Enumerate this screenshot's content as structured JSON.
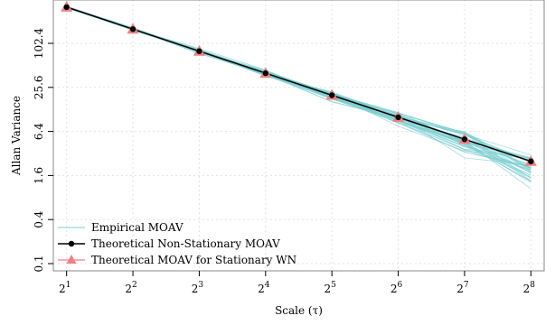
{
  "chart_data": {
    "type": "line",
    "xlabel": "Scale (τ)",
    "ylabel": "Allan Variance",
    "x_scale": "log2",
    "y_scale": "log",
    "x": [
      2,
      4,
      8,
      16,
      32,
      64,
      128,
      256
    ],
    "x_tick_labels": [
      {
        "base": "2",
        "exp": "1"
      },
      {
        "base": "2",
        "exp": "2"
      },
      {
        "base": "2",
        "exp": "3"
      },
      {
        "base": "2",
        "exp": "4"
      },
      {
        "base": "2",
        "exp": "5"
      },
      {
        "base": "2",
        "exp": "6"
      },
      {
        "base": "2",
        "exp": "7"
      },
      {
        "base": "2",
        "exp": "8"
      }
    ],
    "y_ticks": [
      0.1,
      0.4,
      1.6,
      6.4,
      25.6,
      102.4
    ],
    "y_tick_labels": [
      "0.1",
      "0.4",
      "1.6",
      "6.4",
      "25.6",
      "102.4"
    ],
    "grid": true,
    "legend_position": "bottom-left",
    "series": [
      {
        "name": "Empirical MOAV",
        "style": "many-thin-lines",
        "color": "#7ccfd2",
        "line_count": 40
      },
      {
        "name": "Theoretical Non-Stationary MOAV",
        "color": "#000000",
        "marker": "circle",
        "values": [
          320,
          160,
          80,
          40,
          20,
          10,
          5,
          2.5
        ]
      },
      {
        "name": "Theoretical MOAV for Stationary WN",
        "color": "#f08080",
        "marker": "triangle",
        "values": [
          320,
          160,
          80,
          40,
          20,
          10,
          5,
          2.5
        ]
      }
    ]
  }
}
